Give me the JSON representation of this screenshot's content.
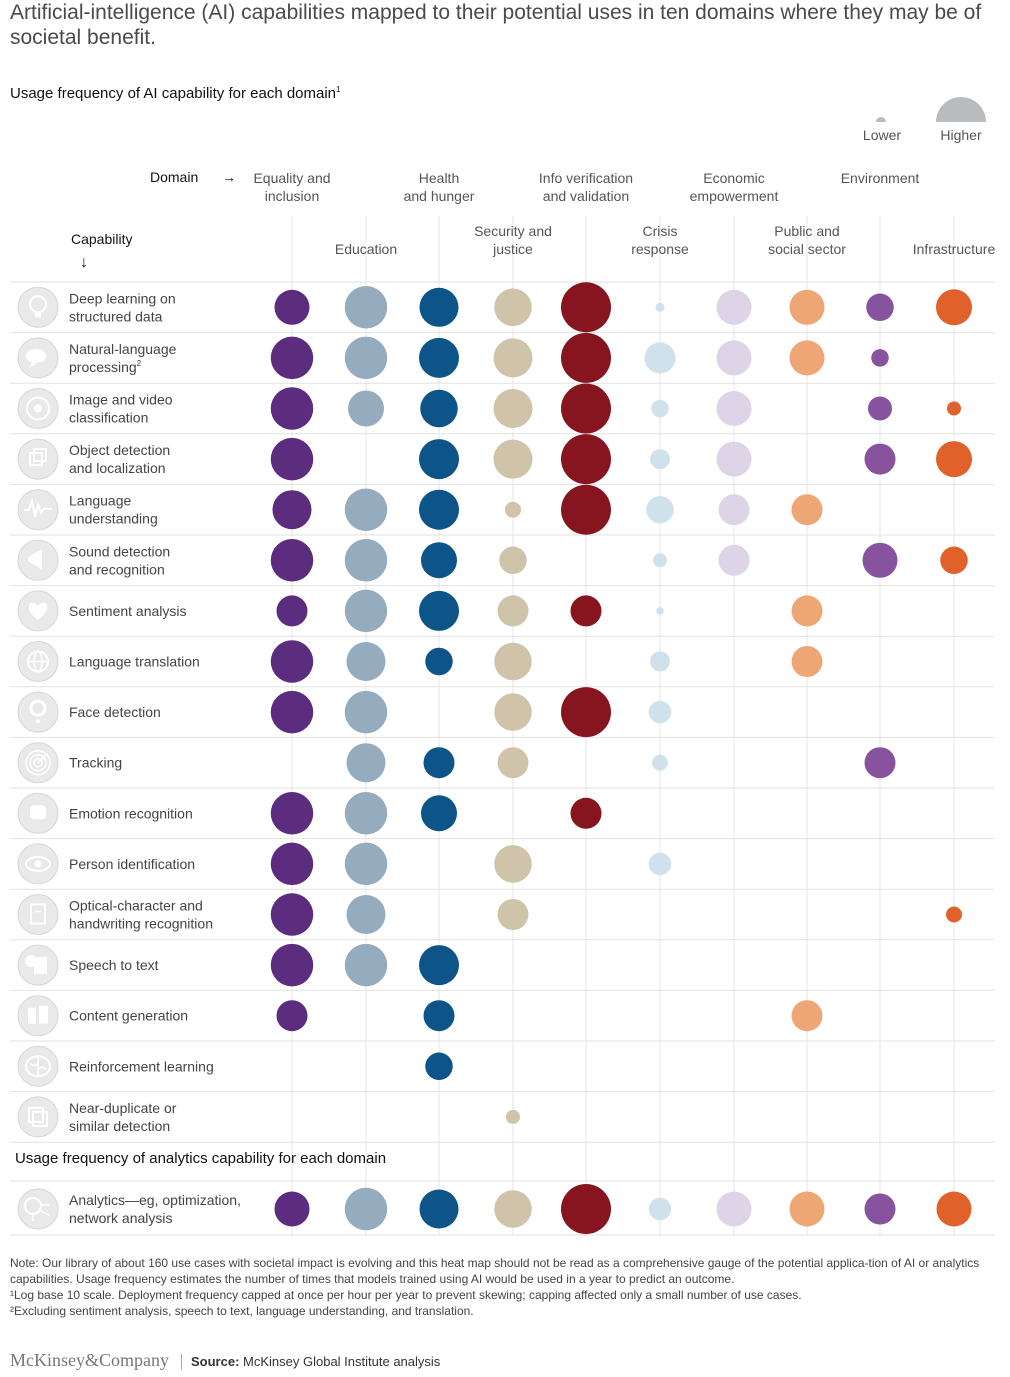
{
  "header": {
    "title": "Artificial-intelligence (AI) capabilities mapped to their potential uses in ten domains where they may be of societal benefit.",
    "subtitle": "Usage frequency of AI capability for each domain",
    "subtitle_note_mark": "1"
  },
  "legend": {
    "lower": "Lower",
    "higher": "Higher"
  },
  "axis_labels": {
    "domain": "Domain",
    "capability": "Capability",
    "domain_arrow": "→",
    "capability_arrow": "↓"
  },
  "section2": {
    "title": "Usage frequency of analytics capability for each domain"
  },
  "colors": {
    "Equality and inclusion": "#5c2d7e",
    "Education": "#94acbd",
    "Health and hunger": "#0d5588",
    "Security and justice": "#cfc3a9",
    "Info verification and validation": "#861520",
    "Crisis response": "#cfe2eb",
    "Economic empowerment": "#ddd4e8",
    "Public and social sector": "#eea675",
    "Environment": "#87539e",
    "Infrastructure": "#e0622a"
  },
  "chart_data": {
    "type": "bubble-matrix",
    "size_scale": "Usage frequency (Lower → Higher)",
    "domains": [
      "Equality and inclusion",
      "Education",
      "Health and hunger",
      "Security and justice",
      "Info verification and validation",
      "Crisis response",
      "Economic empowerment",
      "Public and social sector",
      "Environment",
      "Infrastructure"
    ],
    "domain_labels": [
      [
        "Equality and",
        "inclusion"
      ],
      [
        "Education"
      ],
      [
        "Health",
        "and hunger"
      ],
      [
        "Security and",
        "justice"
      ],
      [
        "Info verification",
        "and validation"
      ],
      [
        "Crisis",
        "response"
      ],
      [
        "Economic",
        "empowerment"
      ],
      [
        "Public and",
        "social sector"
      ],
      [
        "Environment"
      ],
      [
        "Infrastructure"
      ]
    ],
    "capabilities": [
      {
        "label": [
          "Deep learning on",
          "structured data"
        ],
        "icon": "brain-bulb-icon",
        "values": [
          0.7,
          0.85,
          0.78,
          0.75,
          1.0,
          0.18,
          0.7,
          0.7,
          0.55,
          0.72
        ]
      },
      {
        "label": [
          "Natural-language",
          "processing"
        ],
        "note": "2",
        "icon": "speech-bubbles-icon",
        "values": [
          0.85,
          0.85,
          0.8,
          0.78,
          1.0,
          0.62,
          0.7,
          0.7,
          0.35,
          0
        ]
      },
      {
        "label": [
          "Image and video",
          "classification"
        ],
        "icon": "camera-lens-icon",
        "values": [
          0.85,
          0.72,
          0.75,
          0.78,
          1.0,
          0.35,
          0.7,
          0,
          0.48,
          0.28
        ]
      },
      {
        "label": [
          "Object detection",
          "and localization"
        ],
        "icon": "cube-icon",
        "values": [
          0.85,
          0,
          0.8,
          0.78,
          1.0,
          0.4,
          0.7,
          0,
          0.62,
          0.72
        ]
      },
      {
        "label": [
          "Language",
          "understanding"
        ],
        "icon": "waveform-icon",
        "values": [
          0.78,
          0.85,
          0.8,
          0.32,
          1.0,
          0.55,
          0.62,
          0.62,
          0,
          0
        ]
      },
      {
        "label": [
          "Sound detection",
          "and recognition"
        ],
        "icon": "megaphone-icon",
        "values": [
          0.85,
          0.85,
          0.72,
          0.55,
          0,
          0.28,
          0.62,
          0,
          0.7,
          0.55
        ]
      },
      {
        "label": [
          "Sentiment analysis"
        ],
        "icon": "heart-icon",
        "values": [
          0.62,
          0.85,
          0.8,
          0.62,
          0.62,
          0.15,
          0,
          0.62,
          0,
          0
        ]
      },
      {
        "label": [
          "Language translation"
        ],
        "icon": "globe-icon",
        "values": [
          0.85,
          0.78,
          0.55,
          0.75,
          0,
          0.4,
          0,
          0.62,
          0,
          0
        ]
      },
      {
        "label": [
          "Face detection"
        ],
        "icon": "face-question-icon",
        "values": [
          0.85,
          0.85,
          0,
          0.75,
          1.0,
          0.45,
          0,
          0,
          0,
          0
        ]
      },
      {
        "label": [
          "Tracking"
        ],
        "icon": "radar-icon",
        "values": [
          0,
          0.78,
          0.62,
          0.62,
          0,
          0.32,
          0,
          0,
          0.62,
          0
        ]
      },
      {
        "label": [
          "Emotion recognition"
        ],
        "icon": "fist-icon",
        "values": [
          0.85,
          0.85,
          0.72,
          0,
          0.62,
          0,
          0,
          0,
          0,
          0
        ]
      },
      {
        "label": [
          "Person identification"
        ],
        "icon": "eye-icon",
        "values": [
          0.85,
          0.85,
          0,
          0.75,
          0,
          0.45,
          0,
          0,
          0,
          0
        ]
      },
      {
        "label": [
          "Optical-character and",
          "handwriting recognition"
        ],
        "icon": "document-pen-icon",
        "values": [
          0.85,
          0.78,
          0,
          0.62,
          0,
          0,
          0,
          0,
          0,
          0.32
        ]
      },
      {
        "label": [
          "Speech to text"
        ],
        "icon": "speech-document-icon",
        "values": [
          0.85,
          0.85,
          0.8,
          0,
          0,
          0,
          0,
          0,
          0,
          0
        ]
      },
      {
        "label": [
          "Content generation"
        ],
        "icon": "files-icon",
        "values": [
          0.62,
          0,
          0.62,
          0,
          0,
          0,
          0,
          0.62,
          0,
          0
        ]
      },
      {
        "label": [
          "Reinforcement learning"
        ],
        "icon": "brain-icon",
        "values": [
          0,
          0,
          0.55,
          0,
          0,
          0,
          0,
          0,
          0,
          0
        ]
      },
      {
        "label": [
          "Near-duplicate or",
          "similar detection"
        ],
        "icon": "duplicate-squares-icon",
        "values": [
          0,
          0,
          0,
          0.28,
          0,
          0,
          0,
          0,
          0,
          0
        ]
      }
    ],
    "analytics": [
      {
        "label": [
          "Analytics—eg, optimization,",
          "network analysis"
        ],
        "icon": "circuit-icon",
        "values": [
          0.7,
          0.85,
          0.78,
          0.75,
          1.0,
          0.45,
          0.7,
          0.7,
          0.62,
          0.7
        ]
      }
    ]
  },
  "notes": {
    "note": "Note: Our library of about 160 use cases with societal impact is evolving and this heat map should not be read as a comprehensive gauge of the potential applica-tion of AI or analytics capabilities. Usage frequency estimates the number of times that models trained using AI would be used in a year to predict an outcome.",
    "footnote1": "¹Log base 10 scale. Deployment frequency capped at once per hour per year to prevent skewing; capping affected only a small number of use cases.",
    "footnote2": "²Excluding sentiment analysis, speech to text, language understanding, and translation."
  },
  "footer": {
    "logo": "McKinsey&Company",
    "source_label": "Source:",
    "source_text": "McKinsey Global Institute analysis"
  }
}
